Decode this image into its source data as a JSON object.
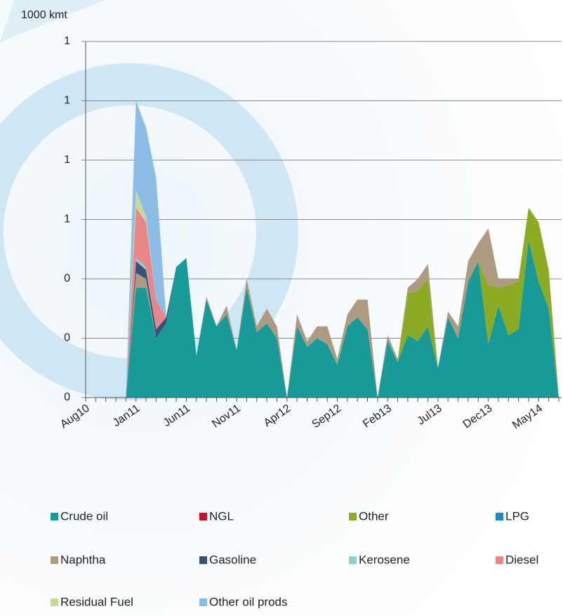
{
  "chart_data": {
    "type": "stacked-area",
    "y_label": "1000 kmt",
    "categories": [
      "Aug10",
      null,
      null,
      null,
      null,
      "Jan11",
      null,
      null,
      null,
      null,
      "Jun11",
      null,
      null,
      null,
      null,
      "Nov11",
      null,
      null,
      null,
      null,
      "Apr12",
      null,
      null,
      null,
      null,
      "Sep12",
      null,
      null,
      null,
      null,
      "Feb13",
      null,
      null,
      null,
      null,
      "Jul13",
      null,
      null,
      null,
      null,
      "Dec13",
      null,
      null,
      null,
      null,
      "May14",
      null,
      null
    ],
    "ylim": [
      0,
      1.2
    ],
    "yticks": [
      {
        "value": 0,
        "label": "0"
      },
      {
        "value": 0.2,
        "label": "0"
      },
      {
        "value": 0.4,
        "label": "0"
      },
      {
        "value": 0.6,
        "label": "1"
      },
      {
        "value": 0.8,
        "label": "1"
      },
      {
        "value": 1.0,
        "label": "1"
      },
      {
        "value": 1.2,
        "label": "1"
      }
    ],
    "grid": true,
    "series": [
      {
        "name": "Crude oil",
        "color": "#189b98",
        "values": [
          0,
          0,
          0,
          0,
          0,
          0.37,
          0.37,
          0.2,
          0.25,
          0.44,
          0.47,
          0.14,
          0.33,
          0.24,
          0.28,
          0.16,
          0.37,
          0.22,
          0.25,
          0.2,
          0,
          0.24,
          0.17,
          0.2,
          0.18,
          0.11,
          0.24,
          0.27,
          0.23,
          0,
          0.19,
          0.12,
          0.21,
          0.19,
          0.24,
          0.1,
          0.27,
          0.2,
          0.39,
          0.46,
          0.18,
          0.31,
          0.21,
          0.23,
          0.53,
          0.39,
          0.3,
          0
        ]
      },
      {
        "name": "NGL",
        "color": "#c0142e",
        "values": [
          0,
          0,
          0,
          0,
          0,
          0,
          0,
          0,
          0,
          0,
          0,
          0,
          0,
          0,
          0,
          0,
          0,
          0,
          0,
          0,
          0,
          0,
          0,
          0,
          0,
          0,
          0,
          0,
          0,
          0,
          0,
          0,
          0,
          0,
          0,
          0,
          0,
          0,
          0,
          0,
          0,
          0,
          0,
          0,
          0,
          0,
          0,
          0
        ]
      },
      {
        "name": "Other",
        "color": "#8aab22",
        "values": [
          0,
          0,
          0,
          0,
          0,
          0,
          0,
          0,
          0,
          0,
          0,
          0,
          0,
          0,
          0,
          0,
          0,
          0,
          0,
          0,
          0,
          0,
          0,
          0,
          0,
          0,
          0,
          0,
          0,
          0,
          0,
          0,
          0.14,
          0.17,
          0.16,
          0,
          0,
          0,
          0,
          0,
          0.2,
          0.06,
          0.17,
          0.16,
          0.11,
          0.2,
          0.13,
          0
        ]
      },
      {
        "name": "LPG",
        "color": "#1a8ac4",
        "values": [
          0,
          0,
          0,
          0,
          0,
          0,
          0,
          0,
          0,
          0,
          0,
          0,
          0,
          0,
          0,
          0,
          0,
          0,
          0,
          0,
          0,
          0,
          0,
          0,
          0,
          0,
          0,
          0,
          0,
          0,
          0,
          0,
          0,
          0,
          0,
          0,
          0,
          0,
          0,
          0,
          0,
          0,
          0,
          0,
          0,
          0,
          0,
          0
        ]
      },
      {
        "name": "Naphtha",
        "color": "#ad9a80",
        "values": [
          0,
          0,
          0,
          0,
          0,
          0.05,
          0.03,
          0,
          0,
          0,
          0,
          0,
          0.01,
          0,
          0.03,
          0,
          0.03,
          0.02,
          0.05,
          0.04,
          0,
          0.04,
          0.02,
          0.04,
          0.06,
          0.02,
          0.04,
          0.06,
          0.1,
          0,
          0.02,
          0.01,
          0.02,
          0.04,
          0.05,
          0,
          0.02,
          0.04,
          0.07,
          0.06,
          0.19,
          0.03,
          0.02,
          0.01,
          0,
          0,
          0,
          0
        ]
      },
      {
        "name": "Gasoline",
        "color": "#3a5078",
        "values": [
          0,
          0,
          0,
          0,
          0,
          0.04,
          0.03,
          0.03,
          0.02,
          0,
          0,
          0,
          0,
          0,
          0,
          0,
          0,
          0,
          0,
          0,
          0,
          0,
          0,
          0,
          0,
          0,
          0,
          0,
          0,
          0,
          0,
          0,
          0,
          0,
          0,
          0,
          0,
          0,
          0,
          0,
          0,
          0,
          0,
          0,
          0,
          0,
          0,
          0
        ]
      },
      {
        "name": "Kerosene",
        "color": "#8ecfcf",
        "values": [
          0,
          0,
          0,
          0,
          0,
          0.01,
          0.01,
          0,
          0,
          0,
          0,
          0,
          0,
          0,
          0,
          0,
          0,
          0,
          0,
          0,
          0,
          0,
          0,
          0,
          0,
          0,
          0,
          0,
          0,
          0,
          0,
          0,
          0,
          0,
          0,
          0,
          0,
          0,
          0,
          0,
          0,
          0,
          0,
          0,
          0,
          0,
          0,
          0
        ]
      },
      {
        "name": "Diesel",
        "color": "#e8868a",
        "values": [
          0,
          0,
          0,
          0,
          0,
          0.17,
          0.15,
          0.1,
          0,
          0,
          0,
          0,
          0,
          0,
          0,
          0,
          0,
          0,
          0,
          0,
          0,
          0,
          0,
          0,
          0,
          0,
          0,
          0,
          0,
          0,
          0,
          0,
          0,
          0,
          0,
          0,
          0,
          0,
          0,
          0,
          0,
          0,
          0,
          0,
          0,
          0,
          0,
          0
        ]
      },
      {
        "name": "Residual Fuel",
        "color": "#c6d99a",
        "values": [
          0,
          0,
          0,
          0,
          0,
          0.06,
          0.02,
          0,
          0,
          0,
          0,
          0,
          0,
          0,
          0,
          0,
          0,
          0,
          0,
          0,
          0,
          0,
          0,
          0,
          0,
          0,
          0,
          0,
          0,
          0,
          0,
          0,
          0,
          0,
          0,
          0,
          0,
          0,
          0,
          0,
          0,
          0,
          0,
          0,
          0,
          0,
          0,
          0
        ]
      },
      {
        "name": "Other oil prods",
        "color": "#8bbde6",
        "values": [
          0,
          0,
          0,
          0,
          0,
          0.3,
          0.3,
          0.41,
          0,
          0,
          0,
          0,
          0,
          0,
          0,
          0,
          0,
          0,
          0,
          0,
          0,
          0,
          0,
          0,
          0,
          0,
          0,
          0,
          0,
          0,
          0,
          0,
          0,
          0,
          0,
          0,
          0,
          0,
          0,
          0,
          0,
          0,
          0,
          0,
          0,
          0,
          0,
          0
        ]
      }
    ]
  }
}
